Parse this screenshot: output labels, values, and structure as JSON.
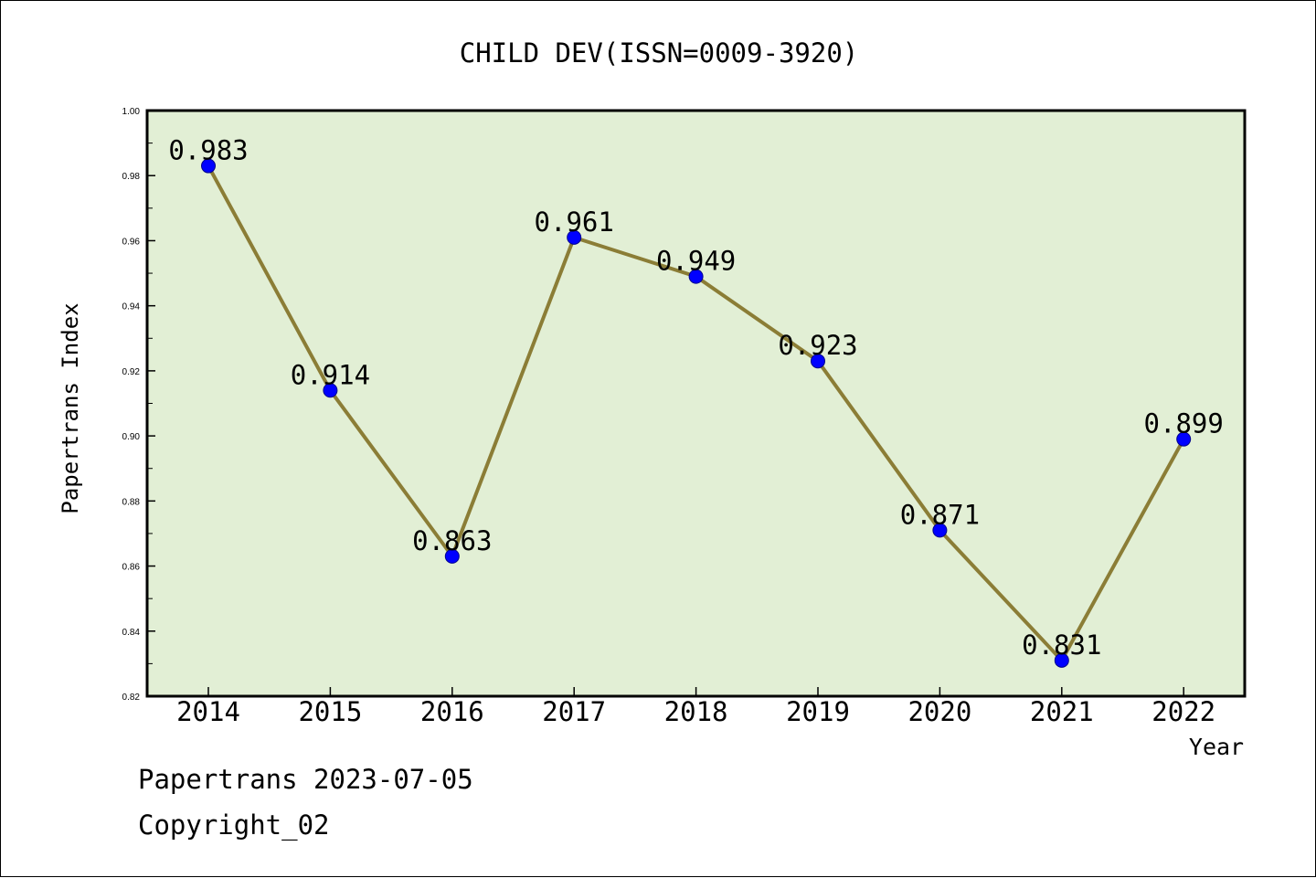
{
  "chart_data": {
    "type": "line",
    "title": "CHILD DEV(ISSN=0009-3920)",
    "xlabel": "Year",
    "ylabel": "Papertrans Index",
    "categories": [
      "2014",
      "2015",
      "2016",
      "2017",
      "2018",
      "2019",
      "2020",
      "2021",
      "2022"
    ],
    "series": [
      {
        "values": [
          0.983,
          0.914,
          0.863,
          0.961,
          0.949,
          0.923,
          0.871,
          0.831,
          0.899
        ]
      }
    ],
    "data_labels": [
      "0.983",
      "0.914",
      "0.863",
      "0.961",
      "0.949",
      "0.923",
      "0.871",
      "0.831",
      "0.899"
    ],
    "ylim": [
      0.82,
      1.0
    ],
    "yticks": [
      "0.82",
      "0.84",
      "0.86",
      "0.88",
      "0.90",
      "0.92",
      "0.94",
      "0.96",
      "0.98",
      "1.00"
    ],
    "grid": false,
    "colors": {
      "plot_background": "#e2efd5",
      "line": "#8b7d36",
      "marker": "#0000ff",
      "axes": "#000000"
    }
  },
  "footer": {
    "line1": "Papertrans 2023-07-05",
    "line2": "Copyright_02"
  }
}
